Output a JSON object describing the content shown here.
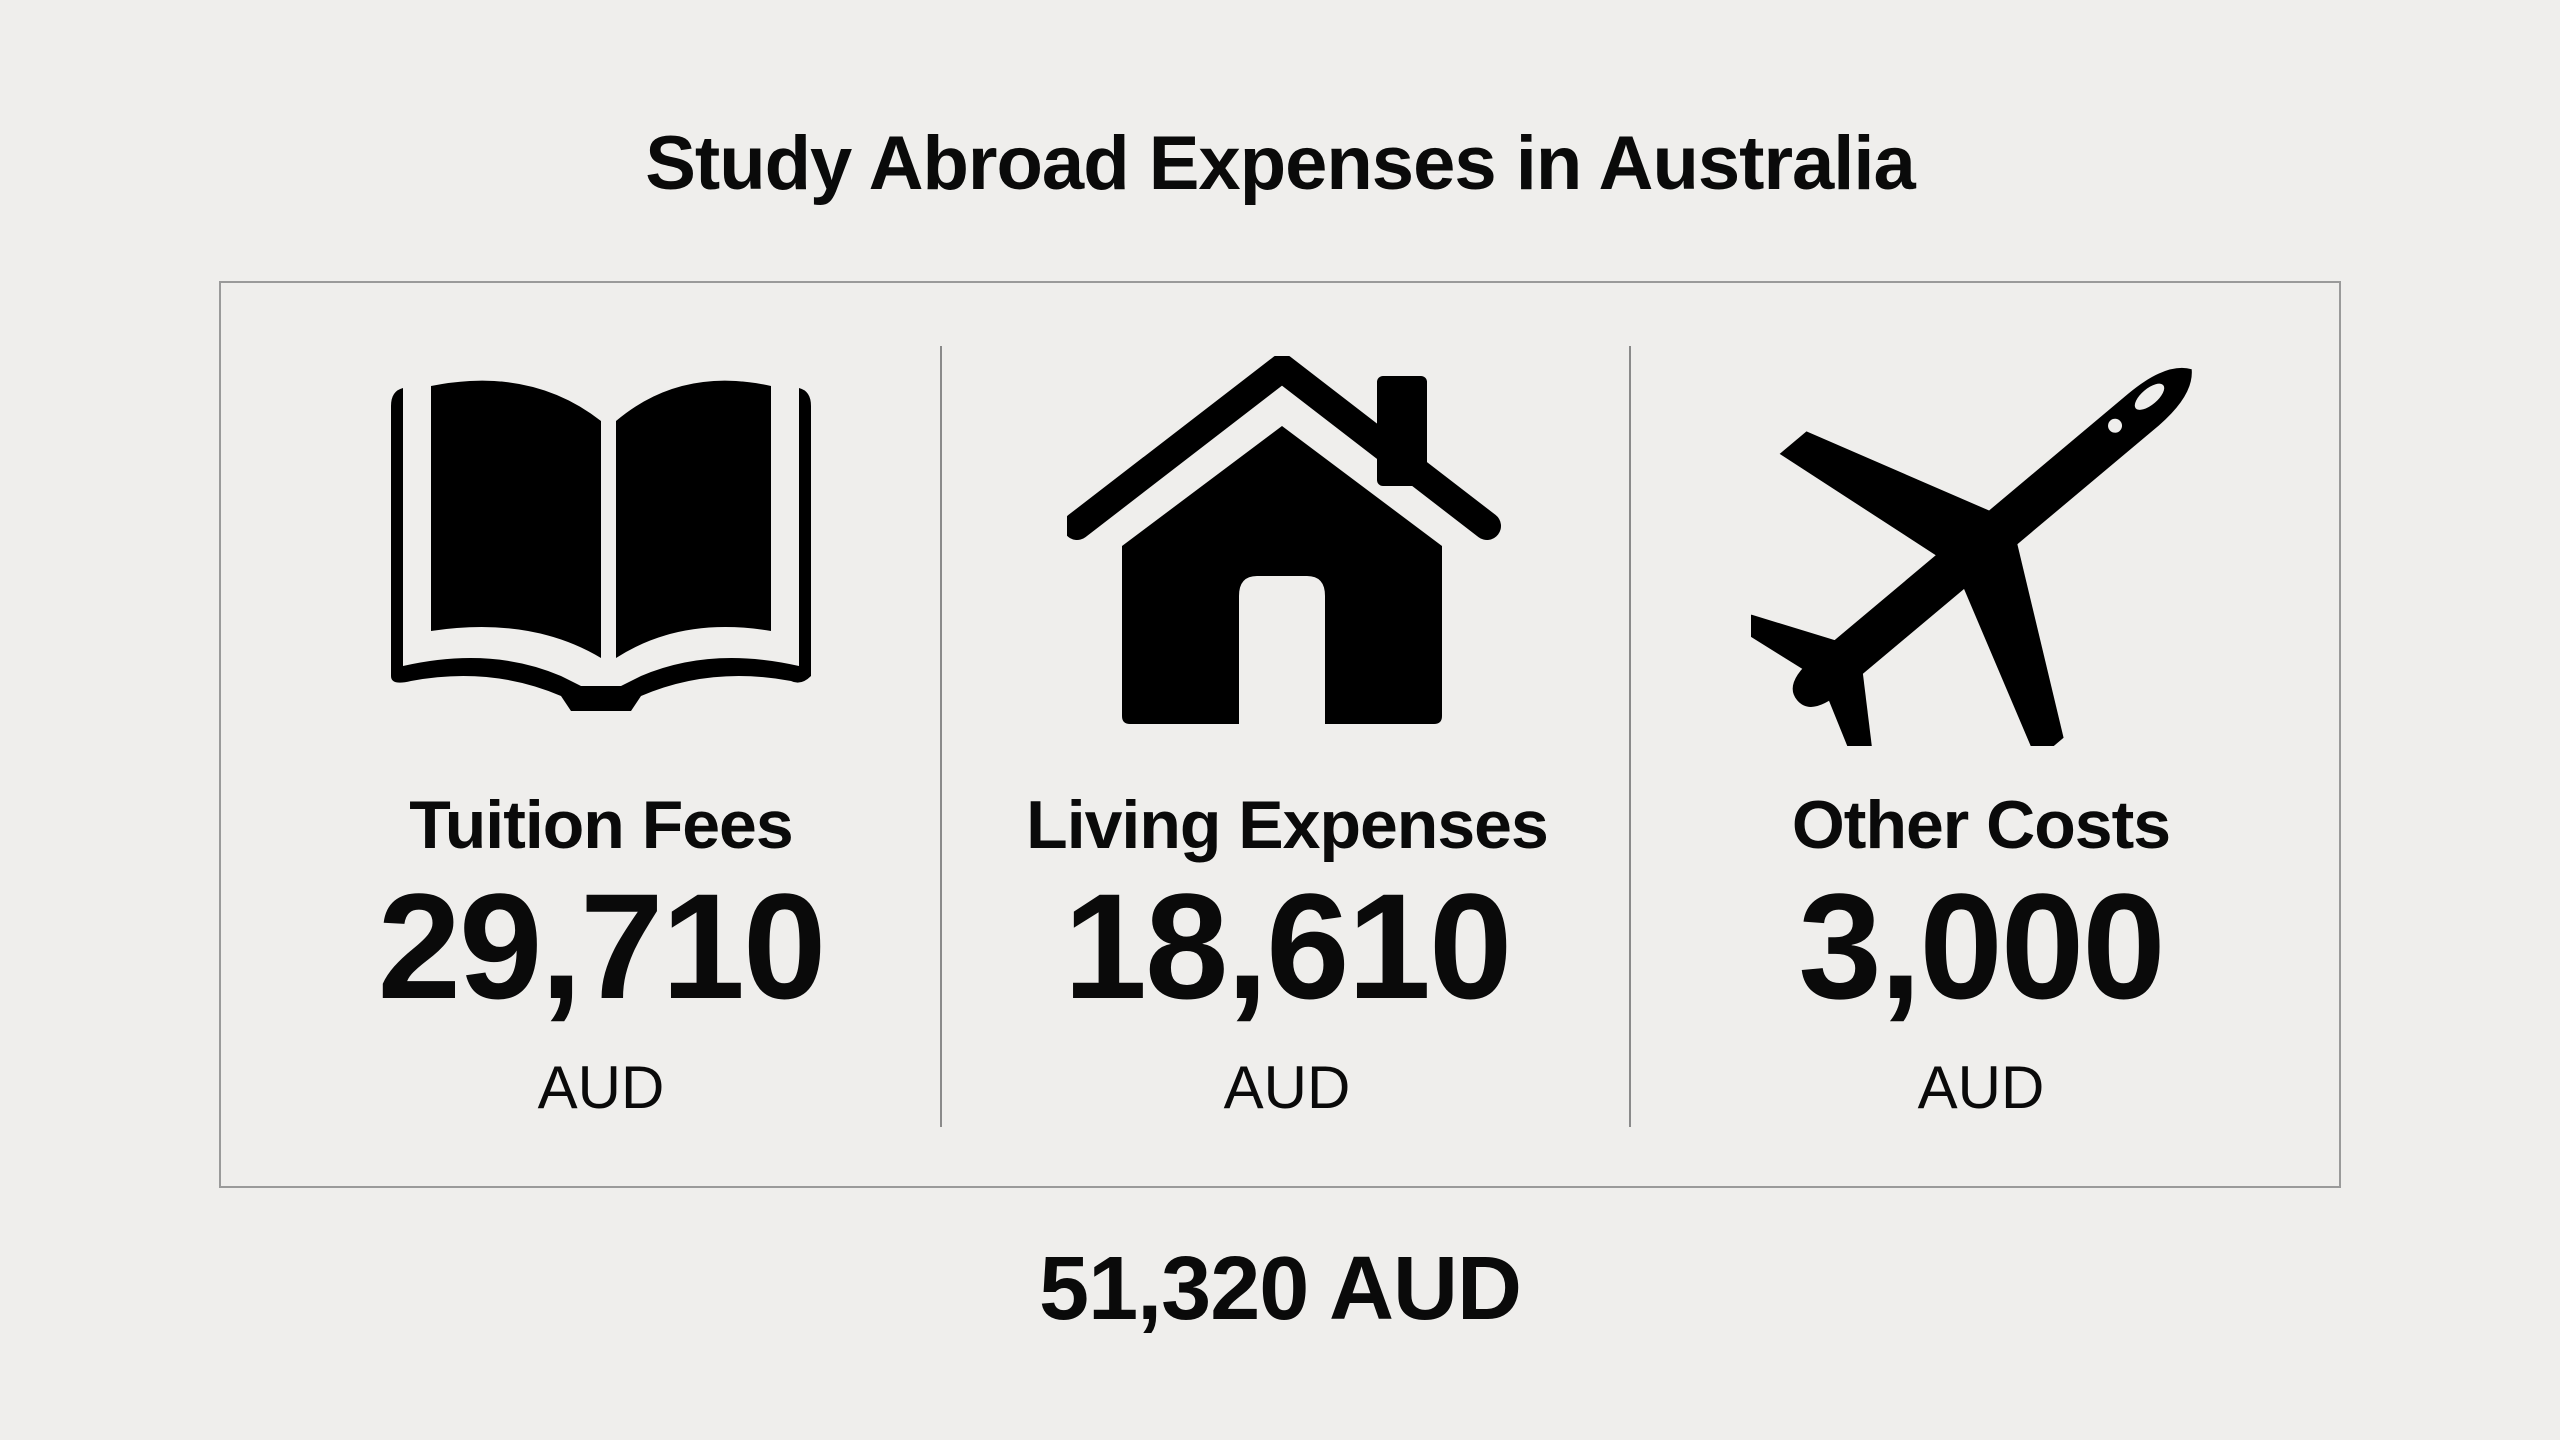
{
  "title": "Study Abroad Expenses in Australia",
  "items": [
    {
      "label": "Tuition Fees",
      "value": "29,710",
      "unit": "AUD",
      "icon": "book-icon"
    },
    {
      "label": "Living Expenses",
      "value": "18,610",
      "unit": "AUD",
      "icon": "house-icon"
    },
    {
      "label": "Other Costs",
      "value": "3,000",
      "unit": "AUD",
      "icon": "airplane-icon"
    }
  ],
  "total": "51,320 AUD"
}
